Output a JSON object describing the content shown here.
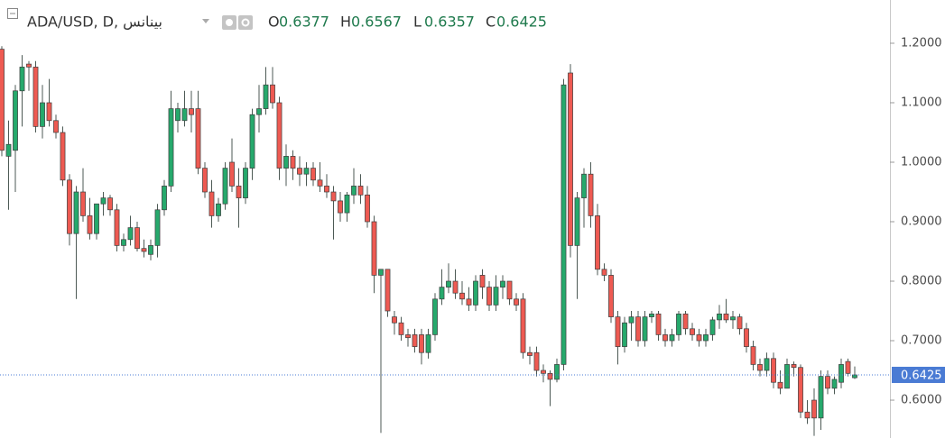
{
  "chart_data": {
    "type": "candlestick",
    "title": "ADA/USD, D, بينانس",
    "ohlc_labels": [
      "O",
      "H",
      "L",
      "C"
    ],
    "up_color": "#26a96c",
    "down_color": "#ee5a52",
    "price_line_color": "#4a7bd4",
    "ylim": [
      0.5364,
      1.2727
    ],
    "yticks": [
      {
        "value": 0.6,
        "label": "0.6000"
      },
      {
        "value": 0.7,
        "label": "0.7000"
      },
      {
        "value": 0.8,
        "label": "0.8000"
      },
      {
        "value": 0.9,
        "label": "0.9000"
      },
      {
        "value": 1.0,
        "label": "1.0000"
      },
      {
        "value": 1.1,
        "label": "1.1000"
      },
      {
        "value": 1.2,
        "label": "1.2000"
      }
    ],
    "open": [
      1.19,
      1.01,
      1.02,
      1.12,
      1.165,
      1.16,
      1.06,
      1.1,
      1.07,
      1.05,
      0.97,
      0.88,
      0.95,
      0.91,
      0.88,
      0.93,
      0.94,
      0.92,
      0.86,
      0.87,
      0.89,
      0.855,
      0.845,
      0.86,
      0.92,
      0.96,
      1.07,
      1.07,
      1.09,
      1.09,
      0.99,
      0.95,
      0.91,
      0.93,
      1.0,
      0.96,
      0.94,
      0.99,
      1.08,
      1.09,
      1.13,
      1.1,
      0.99,
      1.01,
      0.99,
      0.98,
      0.99,
      0.97,
      0.96,
      0.95,
      0.935,
      0.915,
      0.945,
      0.96,
      0.945,
      0.9,
      0.81,
      0.82,
      0.74,
      0.73,
      0.71,
      0.71,
      0.71,
      0.68,
      0.71,
      0.77,
      0.79,
      0.8,
      0.78,
      0.77,
      0.76,
      0.81,
      0.79,
      0.76,
      0.79,
      0.8,
      0.77,
      0.77,
      0.68,
      0.68,
      0.65,
      0.645,
      0.635,
      0.66,
      1.15,
      0.86,
      0.94,
      0.98,
      0.91,
      0.82,
      0.81,
      0.74,
      0.69,
      0.73,
      0.74,
      0.7,
      0.74,
      0.745,
      0.71,
      0.7,
      0.71,
      0.745,
      0.72,
      0.71,
      0.7,
      0.71,
      0.735,
      0.745,
      0.735,
      0.74,
      0.72,
      0.69,
      0.66,
      0.65,
      0.67,
      0.63,
      0.62,
      0.66,
      0.655,
      0.58,
      0.6,
      0.57,
      0.64,
      0.62,
      0.63,
      0.665,
      0.6377
    ],
    "high": [
      1.195,
      1.07,
      1.13,
      1.18,
      1.17,
      1.17,
      1.13,
      1.14,
      1.08,
      1.06,
      0.98,
      0.96,
      0.99,
      0.94,
      0.93,
      0.95,
      0.945,
      0.93,
      0.88,
      0.91,
      0.9,
      0.87,
      0.87,
      0.93,
      0.97,
      1.12,
      1.1,
      1.12,
      1.12,
      1.12,
      1.0,
      0.97,
      0.94,
      1.0,
      1.04,
      0.99,
      1.0,
      1.09,
      1.13,
      1.16,
      1.16,
      1.11,
      1.03,
      1.02,
      1.01,
      1.0,
      1.0,
      1.0,
      0.98,
      0.96,
      0.95,
      0.95,
      0.99,
      0.98,
      0.96,
      0.91,
      0.82,
      0.82,
      0.75,
      0.74,
      0.72,
      0.72,
      0.72,
      0.72,
      0.78,
      0.82,
      0.83,
      0.82,
      0.8,
      0.79,
      0.81,
      0.82,
      0.8,
      0.81,
      0.81,
      0.8,
      0.78,
      0.78,
      0.69,
      0.69,
      0.66,
      0.65,
      0.67,
      1.14,
      1.165,
      0.95,
      0.99,
      1.0,
      0.93,
      0.83,
      0.82,
      0.75,
      0.74,
      0.75,
      0.75,
      0.75,
      0.75,
      0.75,
      0.72,
      0.72,
      0.75,
      0.75,
      0.73,
      0.72,
      0.72,
      0.74,
      0.76,
      0.77,
      0.75,
      0.745,
      0.73,
      0.7,
      0.67,
      0.68,
      0.68,
      0.65,
      0.67,
      0.665,
      0.66,
      0.6,
      0.62,
      0.65,
      0.65,
      0.64,
      0.67,
      0.67,
      0.6567
    ],
    "low": [
      1.01,
      0.92,
      0.95,
      1.06,
      1.12,
      1.05,
      1.04,
      1.06,
      1.04,
      0.96,
      0.86,
      0.77,
      0.9,
      0.87,
      0.87,
      0.91,
      0.91,
      0.85,
      0.85,
      0.86,
      0.85,
      0.84,
      0.835,
      0.84,
      0.91,
      0.95,
      1.05,
      1.06,
      1.05,
      0.98,
      0.94,
      0.89,
      0.9,
      0.92,
      0.95,
      0.89,
      0.93,
      0.97,
      1.05,
      1.08,
      1.09,
      0.97,
      0.96,
      0.97,
      0.96,
      0.96,
      0.96,
      0.95,
      0.94,
      0.87,
      0.9,
      0.9,
      0.93,
      0.93,
      0.89,
      0.78,
      0.545,
      0.74,
      0.71,
      0.7,
      0.69,
      0.68,
      0.66,
      0.67,
      0.7,
      0.76,
      0.78,
      0.77,
      0.76,
      0.75,
      0.75,
      0.77,
      0.75,
      0.75,
      0.77,
      0.76,
      0.75,
      0.67,
      0.66,
      0.64,
      0.63,
      0.59,
      0.63,
      0.65,
      0.84,
      0.77,
      0.89,
      0.89,
      0.81,
      0.8,
      0.73,
      0.66,
      0.68,
      0.7,
      0.69,
      0.69,
      0.73,
      0.7,
      0.69,
      0.69,
      0.7,
      0.71,
      0.7,
      0.69,
      0.69,
      0.7,
      0.72,
      0.73,
      0.72,
      0.71,
      0.68,
      0.65,
      0.64,
      0.64,
      0.62,
      0.61,
      0.62,
      0.64,
      0.57,
      0.56,
      0.54,
      0.55,
      0.61,
      0.61,
      0.62,
      0.64,
      0.6357
    ],
    "close": [
      1.02,
      1.03,
      1.12,
      1.16,
      1.16,
      1.06,
      1.1,
      1.07,
      1.05,
      0.97,
      0.88,
      0.95,
      0.91,
      0.88,
      0.93,
      0.94,
      0.92,
      0.86,
      0.87,
      0.89,
      0.855,
      0.85,
      0.86,
      0.92,
      0.96,
      1.09,
      1.09,
      1.09,
      1.08,
      0.99,
      0.95,
      0.91,
      0.93,
      0.99,
      0.96,
      0.94,
      0.99,
      1.08,
      1.09,
      1.13,
      1.1,
      0.99,
      1.01,
      0.99,
      0.98,
      0.99,
      0.97,
      0.96,
      0.95,
      0.935,
      0.915,
      0.945,
      0.96,
      0.945,
      0.9,
      0.81,
      0.82,
      0.75,
      0.73,
      0.71,
      0.705,
      0.69,
      0.68,
      0.71,
      0.77,
      0.79,
      0.8,
      0.78,
      0.77,
      0.76,
      0.8,
      0.79,
      0.76,
      0.79,
      0.8,
      0.77,
      0.76,
      0.68,
      0.675,
      0.65,
      0.645,
      0.635,
      0.66,
      1.13,
      0.86,
      0.94,
      0.98,
      0.91,
      0.82,
      0.81,
      0.74,
      0.69,
      0.73,
      0.74,
      0.7,
      0.74,
      0.745,
      0.71,
      0.7,
      0.71,
      0.745,
      0.72,
      0.71,
      0.7,
      0.71,
      0.735,
      0.745,
      0.735,
      0.74,
      0.72,
      0.69,
      0.66,
      0.65,
      0.67,
      0.63,
      0.62,
      0.66,
      0.655,
      0.58,
      0.57,
      0.57,
      0.64,
      0.62,
      0.635,
      0.66,
      0.645,
      0.6425
    ]
  }
}
